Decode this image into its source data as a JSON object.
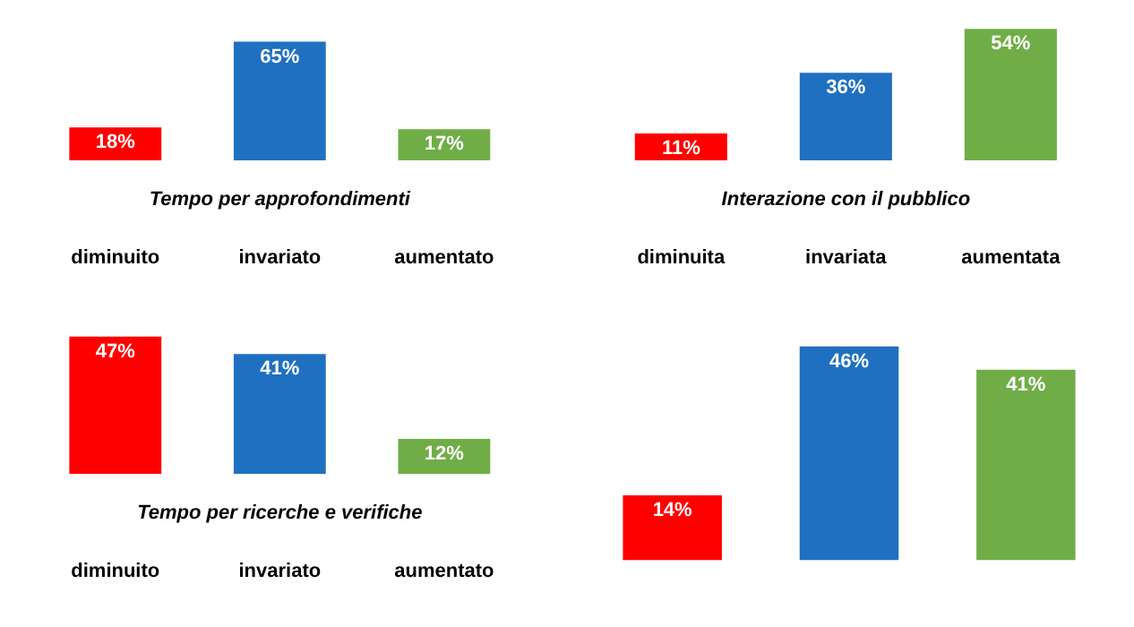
{
  "chart_data": [
    {
      "type": "bar",
      "title": "Tempo per approfondimenti",
      "categories": [
        "diminuito",
        "invariato",
        "aumentato"
      ],
      "values": [
        18,
        65,
        17
      ],
      "colors": [
        "#ff0000",
        "#1f70c1",
        "#70ad47"
      ],
      "value_labels": [
        "18%",
        "65%",
        "17%"
      ]
    },
    {
      "type": "bar",
      "title": "Interazione con il pubblico",
      "categories": [
        "diminuita",
        "invariata",
        "aumentata"
      ],
      "values": [
        11,
        36,
        54
      ],
      "colors": [
        "#ff0000",
        "#1f70c1",
        "#70ad47"
      ],
      "value_labels": [
        "11%",
        "36%",
        "54%"
      ]
    },
    {
      "type": "bar",
      "title": "Tempo per ricerche e verifiche",
      "categories": [
        "diminuito",
        "invariato",
        "aumentato"
      ],
      "values": [
        47,
        41,
        12
      ],
      "colors": [
        "#ff0000",
        "#1f70c1",
        "#70ad47"
      ],
      "value_labels": [
        "47%",
        "41%",
        "12%"
      ]
    },
    {
      "type": "bar",
      "categories": [
        null,
        null,
        null
      ],
      "values": [
        14,
        46,
        41
      ],
      "colors": [
        "#ff0000",
        "#1f70c1",
        "#70ad47"
      ],
      "value_labels": [
        "14%",
        "46%",
        "41%"
      ]
    }
  ]
}
